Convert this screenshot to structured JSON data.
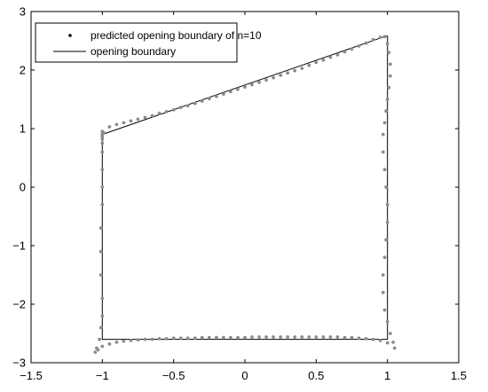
{
  "chart_data": {
    "type": "scatter",
    "title": "",
    "xlabel": "",
    "ylabel": "",
    "xlim": [
      -1.5,
      1.5
    ],
    "ylim": [
      -3,
      3
    ],
    "xticks": [
      "−1.5",
      "−1",
      "−0.5",
      "0",
      "0.5",
      "1",
      "1.5"
    ],
    "xtick_values": [
      -1.5,
      -1,
      -0.5,
      0,
      0.5,
      1,
      1.5
    ],
    "yticks": [
      "3",
      "2",
      "1",
      "0",
      "−1",
      "−2",
      "−3"
    ],
    "ytick_values": [
      3,
      2,
      1,
      0,
      -1,
      -2,
      -3
    ],
    "grid": false,
    "legend_position": "top-left",
    "series": [
      {
        "name": "predicted opening boundary of n=10",
        "marker": "dot",
        "color": "#8c8c8c",
        "x": [
          -1.0,
          -0.95,
          -0.9,
          -0.85,
          -0.8,
          -0.75,
          -0.7,
          -0.65,
          -0.6,
          -0.55,
          -0.5,
          -0.45,
          -0.4,
          -0.35,
          -0.3,
          -0.25,
          -0.2,
          -0.15,
          -0.1,
          -0.05,
          0.0,
          0.05,
          0.1,
          0.15,
          0.2,
          0.25,
          0.3,
          0.35,
          0.4,
          0.45,
          0.5,
          0.55,
          0.6,
          0.65,
          0.7,
          0.75,
          0.8,
          0.85,
          0.9,
          0.95,
          0.98,
          1.0,
          1.01,
          1.02,
          1.02,
          1.01,
          1.0,
          0.99,
          0.98,
          0.97,
          0.97,
          0.98,
          0.99,
          1.0,
          1.0,
          0.99,
          0.98,
          0.97,
          0.97,
          0.98,
          1.0,
          1.02,
          1.04,
          1.05,
          1.0,
          0.95,
          0.9,
          0.85,
          0.8,
          0.75,
          0.7,
          0.65,
          0.6,
          0.55,
          0.5,
          0.45,
          0.4,
          0.35,
          0.3,
          0.25,
          0.2,
          0.15,
          0.1,
          0.05,
          0.0,
          -0.05,
          -0.1,
          -0.15,
          -0.2,
          -0.25,
          -0.3,
          -0.35,
          -0.4,
          -0.45,
          -0.5,
          -0.55,
          -0.6,
          -0.65,
          -0.7,
          -0.75,
          -0.8,
          -0.85,
          -0.9,
          -0.95,
          -1.0,
          -1.03,
          -1.05,
          -1.04,
          -1.02,
          -1.01,
          -1.0,
          -1.0,
          -1.01,
          -1.01,
          -1.01,
          -1.0,
          -1.0,
          -1.0,
          -1.0,
          -1.0,
          -1.0,
          -1.0,
          -1.0,
          -1.0,
          -0.99
        ],
        "y": [
          0.95,
          1.03,
          1.07,
          1.1,
          1.13,
          1.16,
          1.19,
          1.22,
          1.26,
          1.29,
          1.32,
          1.36,
          1.39,
          1.43,
          1.47,
          1.51,
          1.55,
          1.59,
          1.63,
          1.67,
          1.71,
          1.75,
          1.79,
          1.83,
          1.87,
          1.91,
          1.95,
          1.99,
          2.03,
          2.08,
          2.13,
          2.17,
          2.22,
          2.26,
          2.31,
          2.36,
          2.41,
          2.46,
          2.52,
          2.56,
          2.57,
          2.45,
          2.3,
          2.1,
          1.9,
          1.7,
          1.5,
          1.3,
          1.1,
          0.9,
          0.6,
          0.3,
          0.0,
          -0.3,
          -0.6,
          -0.9,
          -1.2,
          -1.5,
          -1.8,
          -2.1,
          -2.3,
          -2.5,
          -2.65,
          -2.75,
          -2.66,
          -2.62,
          -2.6,
          -2.59,
          -2.58,
          -2.57,
          -2.57,
          -2.56,
          -2.56,
          -2.56,
          -2.56,
          -2.56,
          -2.56,
          -2.56,
          -2.56,
          -2.56,
          -2.56,
          -2.56,
          -2.56,
          -2.56,
          -2.57,
          -2.57,
          -2.57,
          -2.57,
          -2.57,
          -2.57,
          -2.57,
          -2.58,
          -2.58,
          -2.58,
          -2.58,
          -2.59,
          -2.59,
          -2.6,
          -2.6,
          -2.61,
          -2.62,
          -2.63,
          -2.65,
          -2.68,
          -2.72,
          -2.78,
          -2.82,
          -2.75,
          -2.6,
          -2.4,
          -2.2,
          -1.9,
          -1.5,
          -1.1,
          -0.7,
          -0.3,
          0.0,
          0.3,
          0.6,
          0.75,
          0.82,
          0.86,
          0.89,
          0.91,
          0.93
        ]
      },
      {
        "name": "opening boundary",
        "marker": "line",
        "color": "#000000",
        "x": [
          -1.0,
          0.99,
          1.0,
          1.0,
          -1.0,
          -1.0
        ],
        "y": [
          0.9,
          2.58,
          2.58,
          -2.6,
          -2.6,
          0.9
        ]
      }
    ]
  }
}
